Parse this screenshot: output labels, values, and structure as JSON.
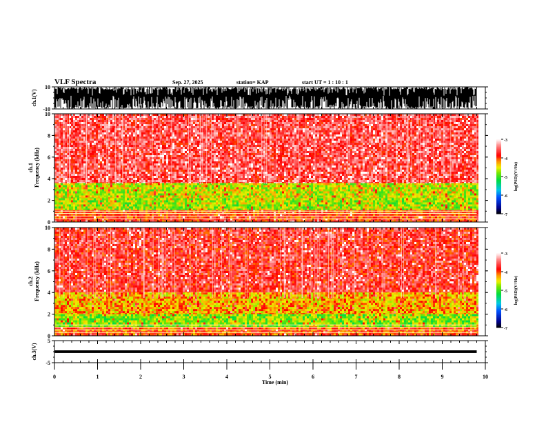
{
  "header": {
    "title": "VLF Spectra",
    "date": "Sep. 27, 2025",
    "station": "station= KAP",
    "start_ut": "start  UT =   1  : 10 : 1"
  },
  "colors": {
    "background": "#ffffff",
    "axis": "#000000",
    "waveform": "#000000"
  },
  "chart_data": [
    {
      "type": "line",
      "name": "ch1-waveform",
      "ylabel": "ch.1(V)",
      "ylim": [
        -10,
        10
      ],
      "yticks": [
        "10",
        "-10"
      ],
      "xlim": [
        0,
        10
      ],
      "data_end_min": 9.8,
      "description_values": "dense waveform filling nearly full range -10 to 10 V"
    },
    {
      "type": "heatmap",
      "name": "ch1-spectrogram",
      "ylabel_line1": "ch.1",
      "ylabel_line2": "Frequency  (kHz)",
      "ylim": [
        0,
        10
      ],
      "yticks": [
        "0",
        "2",
        "4",
        "6",
        "8",
        "10"
      ],
      "xlim": [
        0,
        10
      ],
      "data_end_min": 9.8,
      "bands": [
        {
          "from_khz": 3.6,
          "to_khz": 10,
          "level": -3.6
        },
        {
          "from_khz": 2.2,
          "to_khz": 3.6,
          "level": -4.6
        },
        {
          "from_khz": 1.1,
          "to_khz": 2.2,
          "level": -4.7
        },
        {
          "from_khz": 0,
          "to_khz": 1.1,
          "level": -3.9
        }
      ],
      "colorbar": {
        "label": "log(PSD)(V²/Hz)",
        "range": [
          -7,
          -3
        ],
        "ticks": [
          "-3",
          "-4",
          "-5",
          "-6",
          "-7"
        ]
      }
    },
    {
      "type": "heatmap",
      "name": "ch2-spectrogram",
      "ylabel_line1": "ch.2",
      "ylabel_line2": "Frequency  (kHz)",
      "ylim": [
        0,
        10
      ],
      "yticks": [
        "0",
        "2",
        "4",
        "6",
        "8",
        "10"
      ],
      "xlim": [
        0,
        10
      ],
      "data_end_min": 9.8,
      "bands": [
        {
          "from_khz": 4.0,
          "to_khz": 10,
          "level": -3.7
        },
        {
          "from_khz": 2.0,
          "to_khz": 4.0,
          "level": -4.3
        },
        {
          "from_khz": 0.8,
          "to_khz": 2.0,
          "level": -4.8
        },
        {
          "from_khz": 0,
          "to_khz": 0.8,
          "level": -4.0
        }
      ],
      "colorbar": {
        "label": "log(PSD)(V²/Hz)",
        "range": [
          -7,
          -3
        ],
        "ticks": [
          "-3",
          "-4",
          "-5",
          "-6",
          "-7"
        ]
      }
    },
    {
      "type": "line",
      "name": "ch3-waveform",
      "ylabel": "ch.3(V)",
      "ylim": [
        -5,
        5
      ],
      "yticks": [
        "5",
        "-5"
      ],
      "xlim": [
        0,
        10
      ],
      "data_end_min": 9.8,
      "band_v": [
        -0.6,
        0.6
      ]
    }
  ],
  "xaxis": {
    "label": "Time  (min)",
    "ticks": [
      "0",
      "1",
      "2",
      "3",
      "4",
      "5",
      "6",
      "7",
      "8",
      "9",
      "10"
    ]
  }
}
